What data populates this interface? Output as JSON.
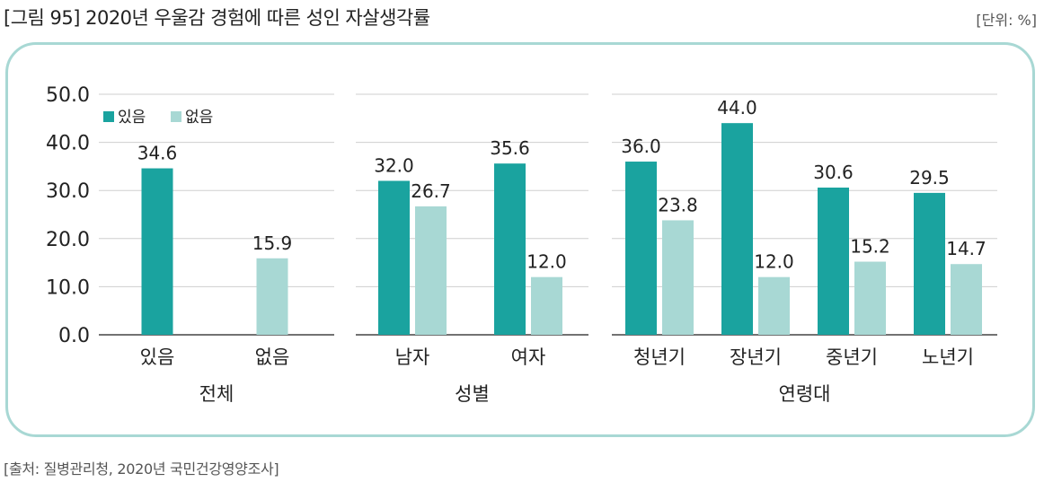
{
  "figure": {
    "title": "[그림 95] 2020년 우울감 경험에 따른 성인 자살생각률",
    "unit": "[단위: %]",
    "source": "[출처: 질병관리청, 2020년 국민건강영양조사]"
  },
  "colors": {
    "있음": "#1aa39f",
    "없음": "#a8d8d4",
    "frame": "#a8d8d4",
    "grid": "#cfcfcf"
  },
  "chart_data": {
    "type": "bar",
    "ylim": [
      0,
      50
    ],
    "yticks": [
      "0.0",
      "10.0",
      "20.0",
      "30.0",
      "40.0",
      "50.0"
    ],
    "grid": true,
    "legend": {
      "position": "top-left",
      "entries": [
        "있음",
        "없음"
      ]
    },
    "panels": [
      {
        "group": "전체",
        "categories": [
          "있음",
          "없음"
        ],
        "bars": [
          {
            "category": "있음",
            "series": "있음",
            "value": 34.6,
            "label": "34.6"
          },
          {
            "category": "없음",
            "series": "없음",
            "value": 15.9,
            "label": "15.9"
          }
        ]
      },
      {
        "group": "성별",
        "categories": [
          "남자",
          "여자"
        ],
        "bars": [
          {
            "category": "남자",
            "series": "있음",
            "value": 32.0,
            "label": "32.0"
          },
          {
            "category": "남자",
            "series": "없음",
            "value": 26.7,
            "label": "26.7"
          },
          {
            "category": "여자",
            "series": "있음",
            "value": 35.6,
            "label": "35.6"
          },
          {
            "category": "여자",
            "series": "없음",
            "value": 12.0,
            "label": "12.0"
          }
        ]
      },
      {
        "group": "연령대",
        "categories": [
          "청년기",
          "장년기",
          "중년기",
          "노년기"
        ],
        "bars": [
          {
            "category": "청년기",
            "series": "있음",
            "value": 36.0,
            "label": "36.0"
          },
          {
            "category": "청년기",
            "series": "없음",
            "value": 23.8,
            "label": "23.8"
          },
          {
            "category": "장년기",
            "series": "있음",
            "value": 44.0,
            "label": "44.0"
          },
          {
            "category": "장년기",
            "series": "없음",
            "value": 12.0,
            "label": "12.0"
          },
          {
            "category": "중년기",
            "series": "있음",
            "value": 30.6,
            "label": "30.6"
          },
          {
            "category": "중년기",
            "series": "없음",
            "value": 15.2,
            "label": "15.2"
          },
          {
            "category": "노년기",
            "series": "있음",
            "value": 29.5,
            "label": "29.5"
          },
          {
            "category": "노년기",
            "series": "없음",
            "value": 14.7,
            "label": "14.7"
          }
        ]
      }
    ]
  }
}
